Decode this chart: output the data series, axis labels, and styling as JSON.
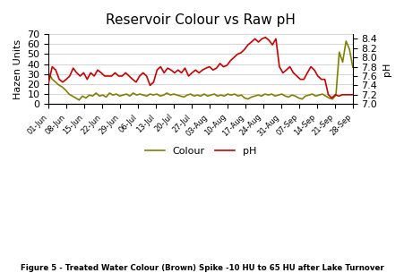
{
  "title": "Reservoir Colour vs Raw pH",
  "ylabel_left": "Hazen Units",
  "ylabel_right": "pH",
  "x_labels": [
    "01-Jun",
    "08-Jun",
    "15-Jun",
    "22-Jun",
    "29-Jun",
    "06-Jul",
    "13-Jul",
    "20-Jul",
    "27-Jul",
    "03-Aug",
    "10-Aug",
    "17-Aug",
    "24-Aug",
    "31-Aug",
    "07-Sep",
    "14-Sep",
    "21-Sep",
    "28-Sep"
  ],
  "ylim_left": [
    0,
    70
  ],
  "ylim_right": [
    7.0,
    8.5
  ],
  "yticks_left": [
    0,
    10,
    20,
    30,
    40,
    50,
    60,
    70
  ],
  "yticks_right": [
    7.0,
    7.2,
    7.4,
    7.6,
    7.8,
    8.0,
    8.2,
    8.4
  ],
  "colour_color": "#808000",
  "ph_color": "#cc0000",
  "caption": "Figure 5 - Treated Water Colour (Brown) Spike -10 HU to 65 HU after Lake Turnover",
  "colour_data": [
    31,
    25,
    22,
    19,
    17,
    14,
    10,
    8,
    6,
    4,
    8,
    6,
    9,
    8,
    11,
    8,
    9,
    7,
    11,
    9,
    10,
    8,
    9,
    10,
    8,
    11,
    9,
    10,
    9,
    8,
    10,
    9,
    10,
    8,
    9,
    11,
    9,
    10,
    9,
    8,
    7,
    9,
    10,
    8,
    9,
    8,
    10,
    8,
    9,
    10,
    8,
    9,
    8,
    10,
    9,
    10,
    8,
    9,
    6,
    5,
    7,
    8,
    9,
    8,
    10,
    9,
    10,
    8,
    9,
    10,
    8,
    7,
    9,
    8,
    6,
    5,
    8,
    9,
    10,
    8,
    9,
    10,
    8,
    6,
    5,
    9,
    52,
    42,
    63,
    55,
    37
  ],
  "ph_data": [
    7.47,
    7.8,
    7.73,
    7.53,
    7.47,
    7.53,
    7.6,
    7.77,
    7.67,
    7.6,
    7.67,
    7.53,
    7.67,
    7.6,
    7.73,
    7.67,
    7.6,
    7.6,
    7.6,
    7.67,
    7.6,
    7.6,
    7.67,
    7.6,
    7.53,
    7.47,
    7.6,
    7.67,
    7.6,
    7.4,
    7.47,
    7.73,
    7.8,
    7.67,
    7.77,
    7.73,
    7.67,
    7.73,
    7.67,
    7.77,
    7.6,
    7.67,
    7.73,
    7.67,
    7.73,
    7.77,
    7.8,
    7.73,
    7.77,
    7.87,
    7.8,
    7.83,
    7.93,
    8.0,
    8.07,
    8.1,
    8.17,
    8.27,
    8.33,
    8.4,
    8.33,
    8.4,
    8.43,
    8.37,
    8.27,
    8.4,
    7.8,
    7.67,
    7.73,
    7.8,
    7.67,
    7.6,
    7.53,
    7.53,
    7.67,
    7.8,
    7.73,
    7.6,
    7.53,
    7.53,
    7.2,
    7.13,
    7.2,
    7.17,
    7.2,
    7.2,
    7.2,
    7.2
  ]
}
